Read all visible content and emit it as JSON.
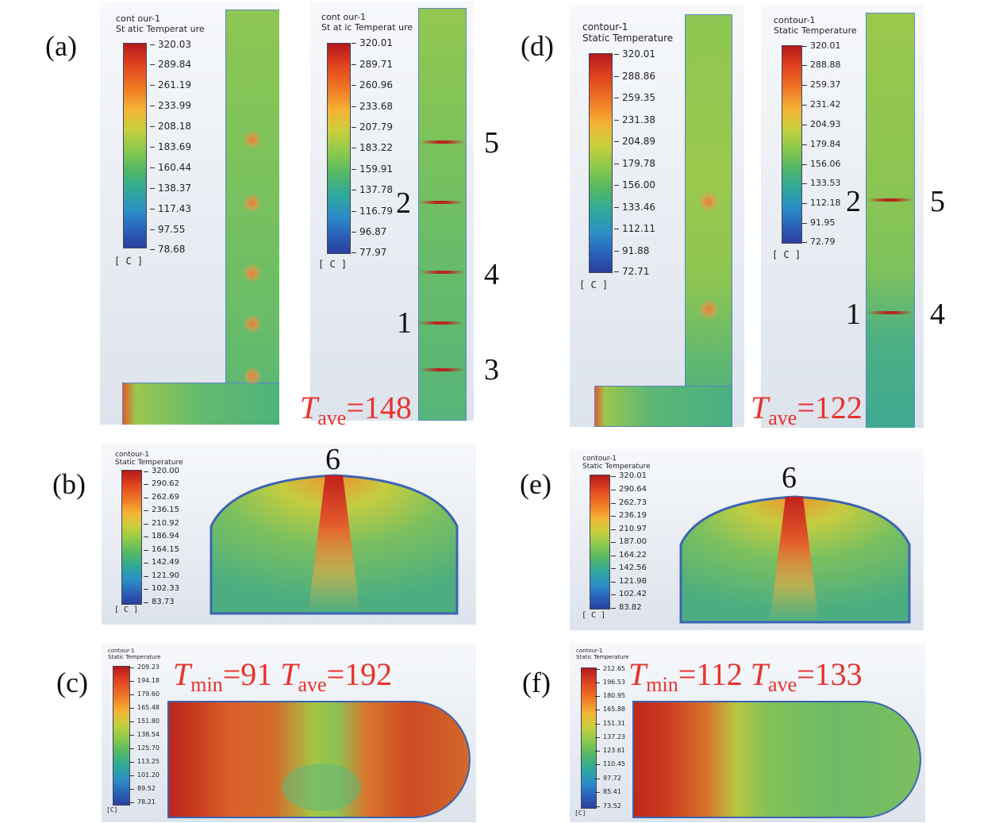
{
  "panels": {
    "a1": {
      "legend_title_1": "cont our-1",
      "legend_title_2": "St atic Temperat ure",
      "ticks": [
        "320.03",
        "289.84",
        "261.19",
        "233.99",
        "208.18",
        "183.69",
        "160.44",
        "138.37",
        "117.43",
        "97.55",
        "78.68"
      ],
      "unit": "[ C ]",
      "label": "(a)"
    },
    "a2": {
      "legend_title_1": "cont our-1",
      "legend_title_2": "St at ic Temperat ure",
      "ticks": [
        "320.01",
        "289.71",
        "260.96",
        "233.68",
        "207.79",
        "183.22",
        "159.91",
        "137.78",
        "116.79",
        "96.87",
        "77.97"
      ],
      "unit": "[ C ]",
      "numbers": [
        "5",
        "2",
        "4",
        "1",
        "3"
      ],
      "tave_label": "T",
      "tave_sub": "ave",
      "tave_value": "=148"
    },
    "d1": {
      "legend_title_1": "contour-1",
      "legend_title_2": "Static Temperature",
      "ticks": [
        "320.01",
        "288.86",
        "259.35",
        "231.38",
        "204.89",
        "179.78",
        "156.00",
        "133.46",
        "112.11",
        "91.88",
        "72.71"
      ],
      "unit": "[ C ]",
      "label": "(d)"
    },
    "d2": {
      "legend_title_1": "contour-1",
      "legend_title_2": "Static Temperature",
      "ticks": [
        "320.01",
        "288.88",
        "259.37",
        "231.42",
        "204.93",
        "179.84",
        "156.06",
        "133.53",
        "112.18",
        "91.95",
        "72.79"
      ],
      "unit": "[ C ]",
      "numbers": [
        "2",
        "5",
        "1",
        "4"
      ],
      "tave_label": "T",
      "tave_sub": "ave",
      "tave_value": "=122"
    },
    "b": {
      "legend_title_1": "contour-1",
      "legend_title_2": "Static Temperature",
      "ticks": [
        "320.00",
        "290.62",
        "262.69",
        "236.15",
        "210.92",
        "186.94",
        "164.15",
        "142.49",
        "121.90",
        "102.33",
        "83.73"
      ],
      "unit": "[ C ]",
      "label": "(b)",
      "number": "6"
    },
    "e": {
      "legend_title_1": "contour-1",
      "legend_title_2": "Static Temperature",
      "ticks": [
        "320.01",
        "290.64",
        "262.73",
        "236.19",
        "210.97",
        "187.00",
        "164.22",
        "142.56",
        "121.98",
        "102.42",
        "83.82"
      ],
      "unit": "[ C ]",
      "label": "(e)",
      "number": "6"
    },
    "c": {
      "legend_title_1": "contour-1",
      "legend_title_2": "Static Temperature",
      "ticks": [
        "209.23",
        "194.18",
        "179.60",
        "165.48",
        "151.80",
        "138.54",
        "125.70",
        "113.25",
        "101.20",
        "89.52",
        "78.21"
      ],
      "unit": "[C]",
      "label": "(c)",
      "tmin_label": "T",
      "tmin_sub": "min",
      "tmin_value": "=91",
      "tave_label": "T",
      "tave_sub": "ave",
      "tave_value": "=192"
    },
    "f": {
      "legend_title_1": "contour-1",
      "legend_title_2": "Static Temperature",
      "ticks": [
        "212.65",
        "196.53",
        "180.95",
        "165.88",
        "151.31",
        "137.23",
        "123.61",
        "110.45",
        "97.72",
        "85.41",
        "73.52"
      ],
      "unit": "[C]",
      "label": "(f)",
      "tmin_label": "T",
      "tmin_sub": "min",
      "tmin_value": "=112",
      "tave_label": "T",
      "tave_sub": "ave",
      "tave_value": "=133"
    }
  }
}
